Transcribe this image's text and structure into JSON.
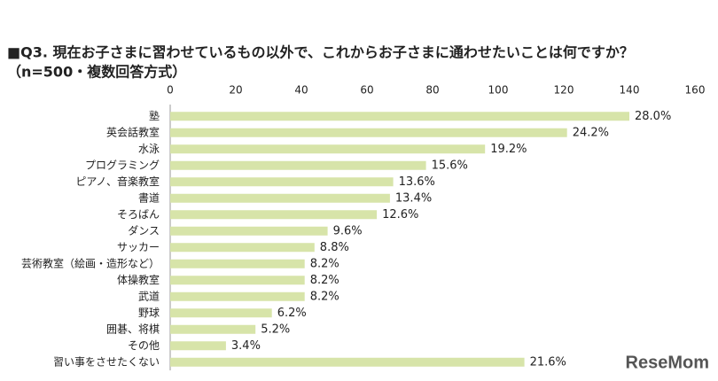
{
  "chart_data": {
    "type": "bar",
    "orientation": "horizontal",
    "title": "■Q3. 現在お子さまに習わせているもの以外で、これからお子さまに通わせたいことは何ですか？",
    "subtitle": "（n=500・複数回答方式）",
    "categories": [
      "塾",
      "英会話教室",
      "水泳",
      "プログラミング",
      "ピアノ、音楽教室",
      "書道",
      "そろばん",
      "ダンス",
      "サッカー",
      "芸術教室（絵画・造形など）",
      "体操教室",
      "武道",
      "野球",
      "囲碁、将棋",
      "その他",
      "習い事をさせたくない"
    ],
    "values": [
      140,
      121,
      96,
      78,
      68,
      67,
      63,
      48,
      44,
      41,
      41,
      41,
      31,
      26,
      17,
      108
    ],
    "value_labels": [
      "28.0%",
      "24.2%",
      "19.2%",
      "15.6%",
      "13.6%",
      "13.4%",
      "12.6%",
      "9.6%",
      "8.8%",
      "8.2%",
      "8.2%",
      "8.2%",
      "6.2%",
      "5.2%",
      "3.4%",
      "21.6%"
    ],
    "color": "#d7e4a9",
    "xlim": [
      0,
      160
    ],
    "xticks": [
      0,
      20,
      40,
      60,
      80,
      100,
      120,
      140,
      160
    ],
    "grid": false
  },
  "brand": "ReseMom"
}
